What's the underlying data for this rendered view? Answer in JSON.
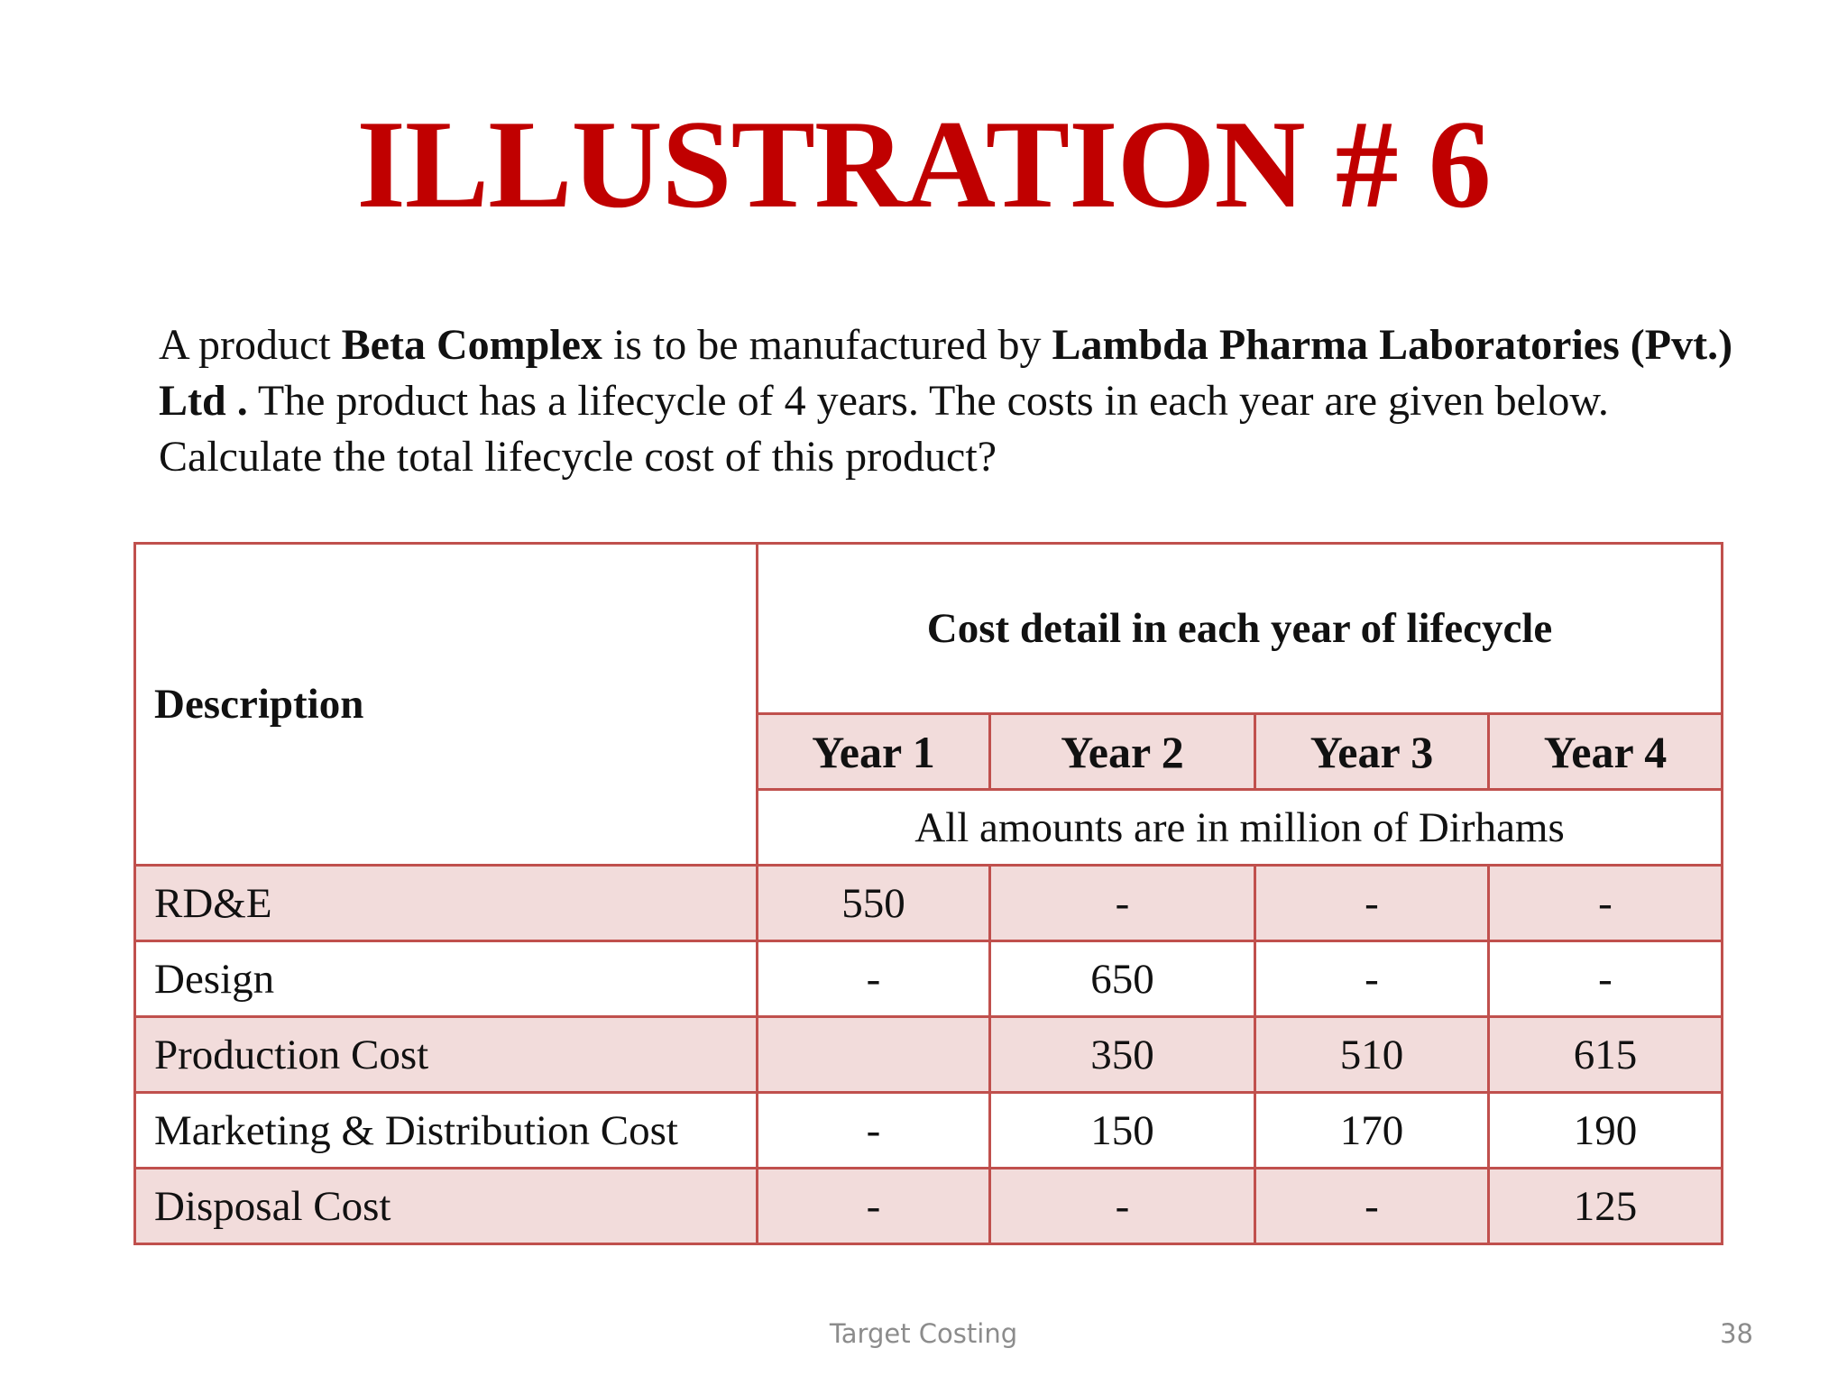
{
  "slide": {
    "title": "ILLUSTRATION # 6",
    "intro": {
      "t1": "A product ",
      "product": "Beta Complex",
      "t2": "  is to be manufactured by ",
      "company": "Lambda Pharma Laboratories (Pvt.) Ltd .",
      "t3": " The product has a lifecycle of 4 years. The costs in each year are given below. Calculate the total lifecycle cost of this product?"
    },
    "footer": "Target Costing",
    "page_number": "38"
  },
  "table": {
    "description_header": "Description",
    "group_header": "Cost detail in each year of lifecycle",
    "years": [
      "Year 1",
      "Year 2",
      "Year 3",
      "Year 4"
    ],
    "units_note": "All amounts are in million of Dirhams",
    "rows": [
      {
        "label": "RD&E",
        "values": [
          "550",
          "-",
          "-",
          "-"
        ]
      },
      {
        "label": "Design",
        "values": [
          "-",
          "650",
          "-",
          "-"
        ]
      },
      {
        "label": "Production Cost",
        "values": [
          "",
          "350",
          "510",
          "615"
        ]
      },
      {
        "label": "Marketing & Distribution Cost",
        "values": [
          "-",
          "150",
          "170",
          "190"
        ]
      },
      {
        "label": "Disposal Cost",
        "values": [
          "-",
          "-",
          "-",
          "125"
        ]
      }
    ]
  }
}
